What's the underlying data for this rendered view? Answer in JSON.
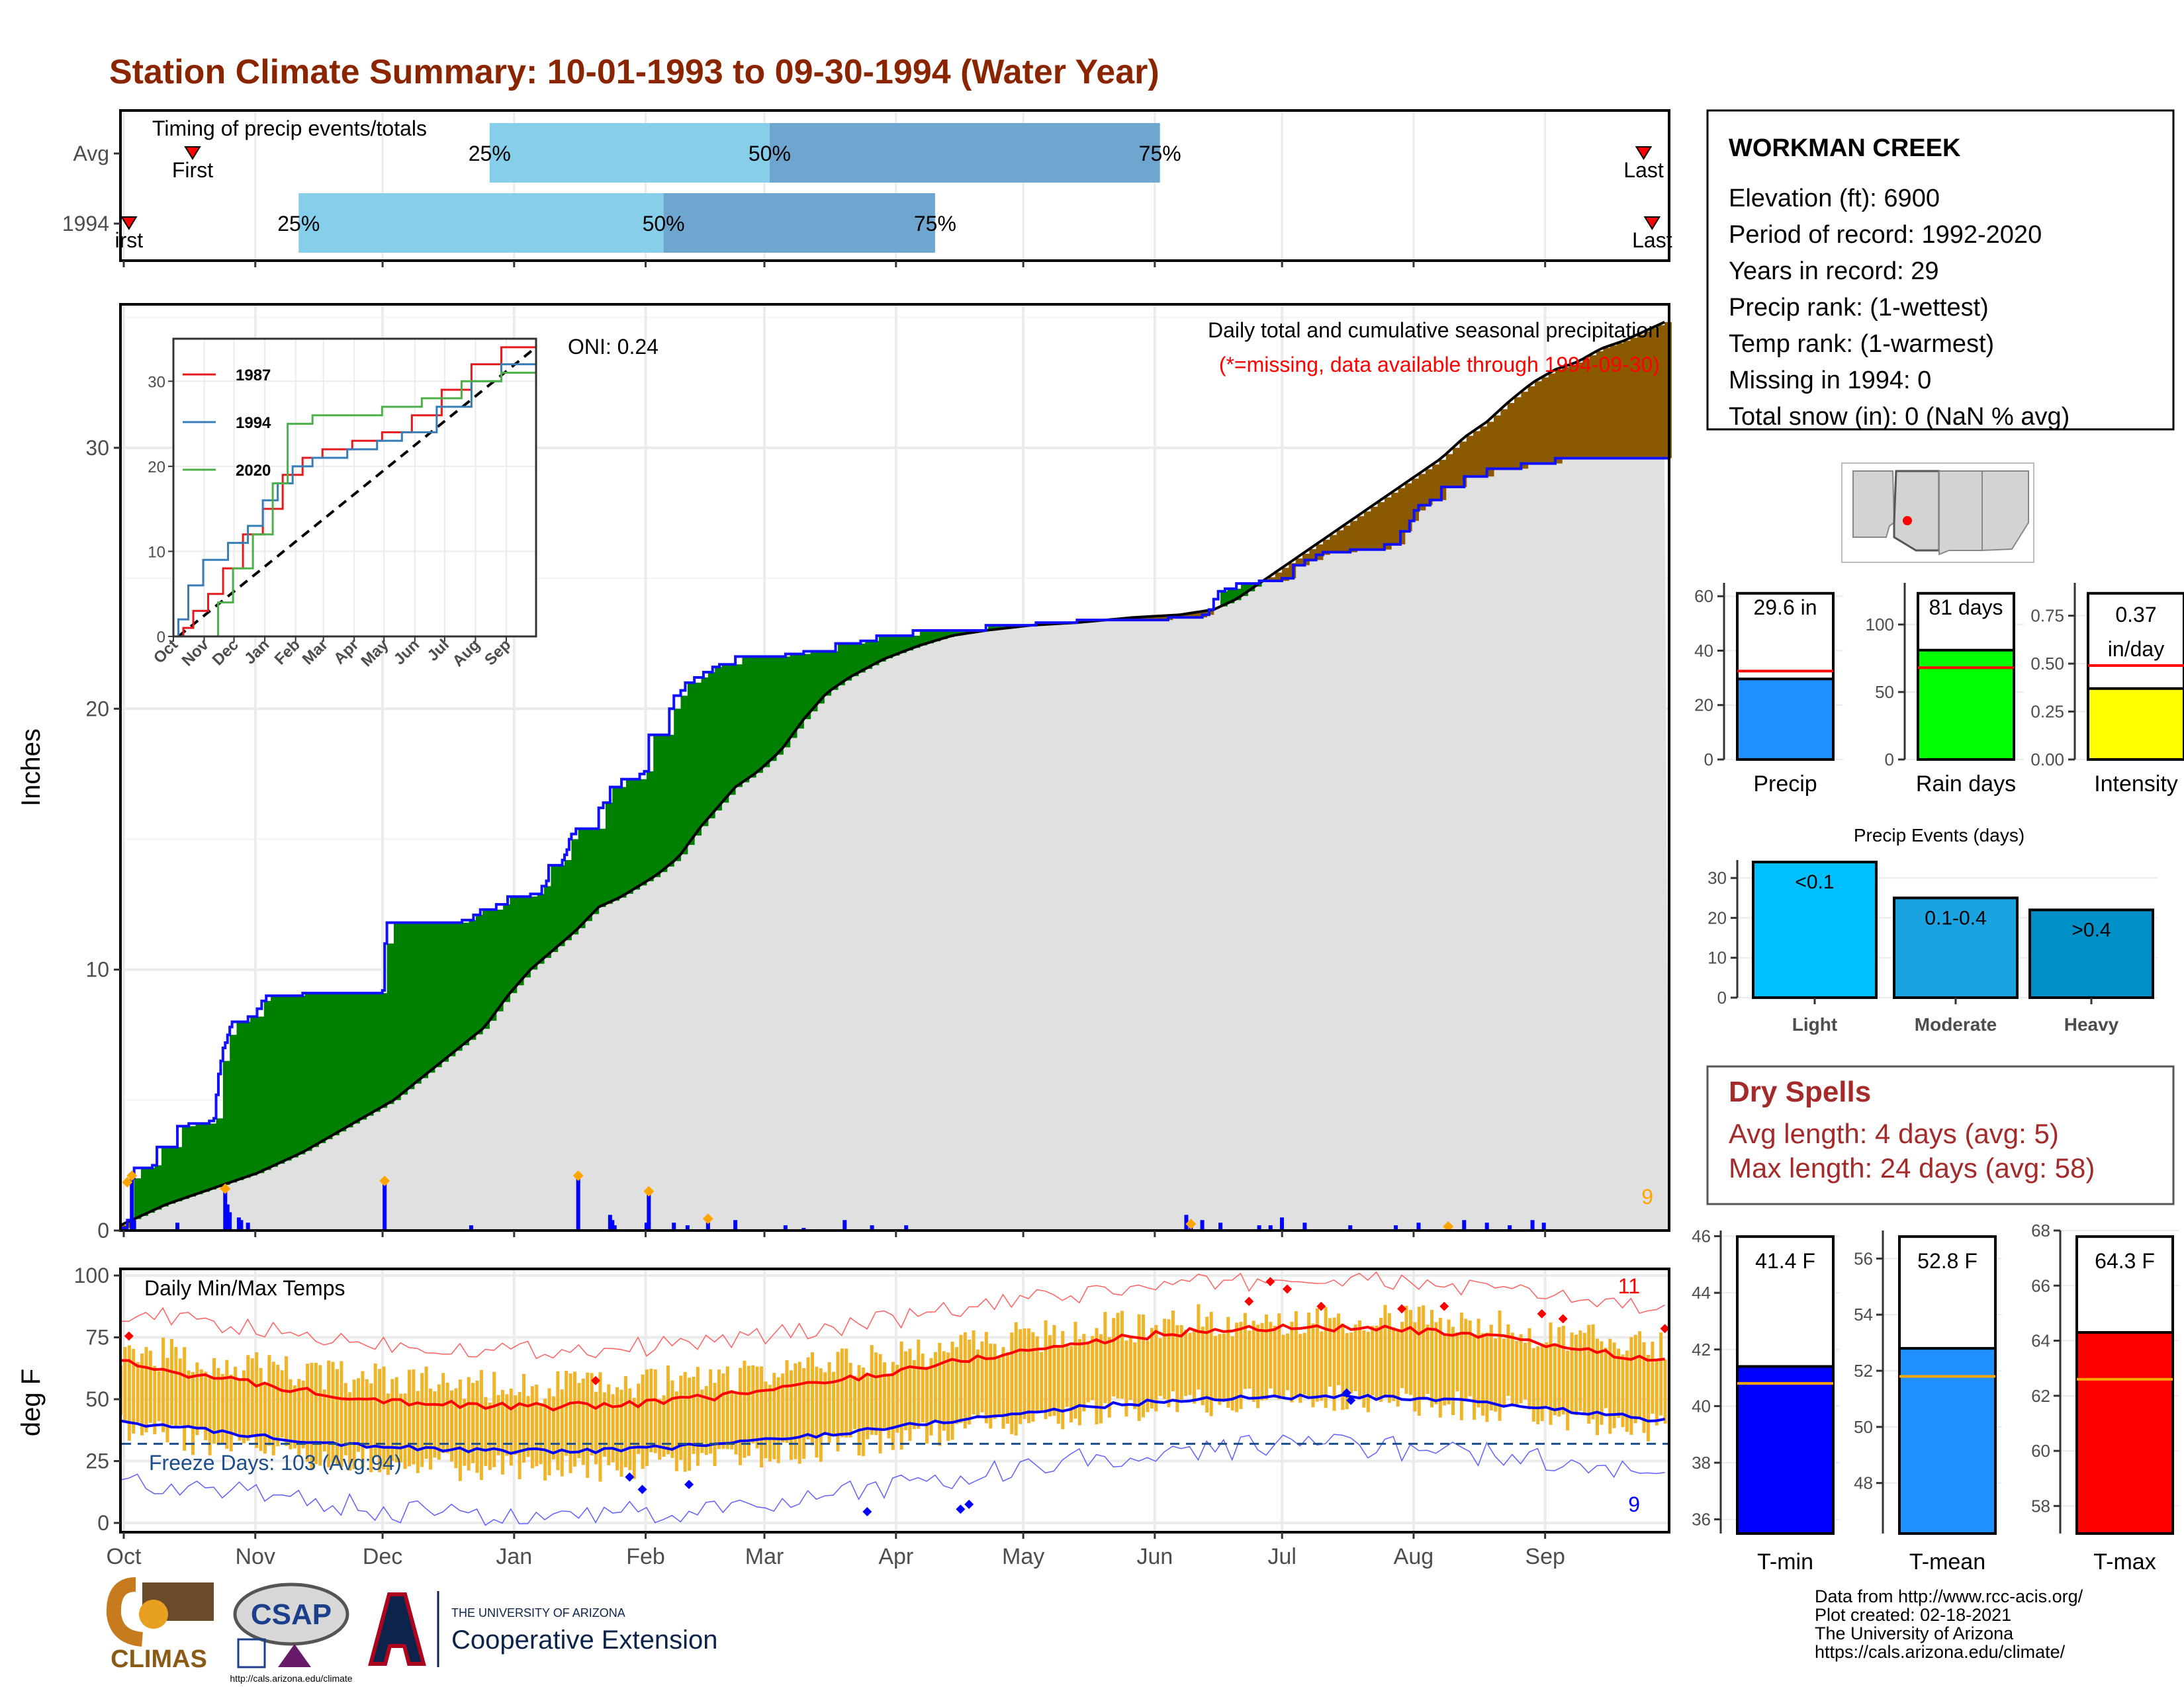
{
  "title": "Station Climate Summary: 10-01-1993 to 09-30-1994 (Water Year)",
  "colors": {
    "title": "#8b2500",
    "light_blue": "#87ceeb",
    "mid_blue": "#6ea6d0",
    "green": "#008000",
    "brown": "#8b5a00",
    "gray_fill": "#e0e0e0",
    "blue_line": "#0000ff",
    "orange": "#ffa500",
    "temp_bar": "#f0b429",
    "red": "#ff0000",
    "dry_red": "#a52a2a"
  },
  "months": [
    "Oct",
    "Nov",
    "Dec",
    "Jan",
    "Feb",
    "Mar",
    "Apr",
    "May",
    "Jun",
    "Jul",
    "Aug",
    "Sep"
  ],
  "inset_months": [
    "Oct",
    "Nov",
    "Dec",
    "Jan",
    "Feb",
    "Mar",
    "Apr",
    "May",
    "Jun",
    "Jul",
    "Aug",
    "Sep"
  ],
  "timing": {
    "title": "Timing of precip events/totals",
    "rows": [
      {
        "label": "Avg",
        "first_label": "First",
        "last_label": "Last",
        "first_day": 17,
        "p25_day": 87,
        "p50_day": 153,
        "p75_day": 245,
        "last_day": 359
      },
      {
        "label": "1994",
        "first_label": "irst",
        "last_label": "Last",
        "first_day": 2,
        "p25_day": 42,
        "p50_day": 128,
        "p75_day": 192,
        "last_day": 361
      }
    ],
    "pct_labels": [
      "25%",
      "50%",
      "75%"
    ]
  },
  "precip": {
    "ylabel": "Inches",
    "yticks": [
      0,
      10,
      20,
      30
    ],
    "ylim": [
      0,
      35.5
    ],
    "oni": "ONI: 0.24",
    "note1": "Daily total and cumulative seasonal precipitation",
    "note2": "(*=missing, data available through 1994-09-30)",
    "count": "9",
    "cum_1994": [
      [
        0,
        0.1
      ],
      [
        3,
        0.4
      ],
      [
        5,
        2.0
      ],
      [
        6,
        2.4
      ],
      [
        14,
        2.5
      ],
      [
        16,
        3.2
      ],
      [
        25,
        4.0
      ],
      [
        30,
        4.1
      ],
      [
        39,
        4.2
      ],
      [
        41,
        4.3
      ],
      [
        42,
        5.2
      ],
      [
        43,
        6.0
      ],
      [
        44,
        6.5
      ],
      [
        45,
        7.0
      ],
      [
        46,
        7.2
      ],
      [
        47,
        7.5
      ],
      [
        48,
        7.8
      ],
      [
        49,
        8.0
      ],
      [
        56,
        8.2
      ],
      [
        60,
        8.5
      ],
      [
        62,
        8.8
      ],
      [
        64,
        9.0
      ],
      [
        80,
        9.1
      ],
      [
        81,
        9.1
      ],
      [
        115,
        9.2
      ],
      [
        116,
        11.0
      ],
      [
        117,
        11.8
      ],
      [
        150,
        11.9
      ],
      [
        155,
        12.1
      ],
      [
        158,
        12.3
      ],
      [
        165,
        12.5
      ],
      [
        170,
        12.8
      ],
      [
        180,
        12.9
      ],
      [
        185,
        13.2
      ],
      [
        187,
        13.4
      ],
      [
        188,
        14.0
      ],
      [
        194,
        14.2
      ],
      [
        195,
        14.4
      ],
      [
        196,
        14.6
      ],
      [
        197,
        15.0
      ],
      [
        198,
        15.2
      ],
      [
        200,
        15.4
      ],
      [
        210,
        16.2
      ],
      [
        212,
        16.4
      ],
      [
        215,
        17.0
      ],
      [
        220,
        17.3
      ],
      [
        228,
        17.5
      ],
      [
        230,
        17.6
      ],
      [
        232,
        19.0
      ],
      [
        241,
        20.0
      ],
      [
        243,
        20.5
      ],
      [
        246,
        20.7
      ],
      [
        248,
        21.0
      ],
      [
        252,
        21.2
      ],
      [
        256,
        21.4
      ],
      [
        260,
        21.6
      ],
      [
        263,
        21.7
      ],
      [
        270,
        22.0
      ],
      [
        292,
        22.1
      ],
      [
        300,
        22.2
      ],
      [
        314,
        22.5
      ],
      [
        325,
        22.6
      ],
      [
        332,
        22.8
      ],
      [
        348,
        23.0
      ],
      [
        380,
        23.2
      ],
      [
        402,
        23.3
      ],
      [
        420,
        23.4
      ],
      [
        440,
        23.4
      ],
      [
        460,
        23.5
      ],
      [
        472,
        23.5
      ],
      [
        475,
        23.6
      ],
      [
        478,
        23.8
      ],
      [
        480,
        24.2
      ],
      [
        482,
        24.5
      ],
      [
        485,
        24.6
      ],
      [
        490,
        24.8
      ],
      [
        500,
        24.9
      ],
      [
        510,
        25.0
      ],
      [
        515,
        25.5
      ],
      [
        520,
        25.7
      ],
      [
        525,
        25.9
      ],
      [
        528,
        26.0
      ],
      [
        540,
        26.1
      ],
      [
        555,
        26.3
      ],
      [
        562,
        26.8
      ],
      [
        566,
        27.2
      ],
      [
        568,
        27.6
      ],
      [
        570,
        27.8
      ],
      [
        575,
        28.0
      ],
      [
        580,
        28.5
      ],
      [
        590,
        28.9
      ],
      [
        600,
        29.2
      ],
      [
        615,
        29.4
      ],
      [
        630,
        29.6
      ]
    ],
    "cum_avg": [
      [
        0,
        0.2
      ],
      [
        20,
        1.0
      ],
      [
        40,
        1.6
      ],
      [
        60,
        2.2
      ],
      [
        80,
        3.0
      ],
      [
        100,
        4.0
      ],
      [
        120,
        5.0
      ],
      [
        140,
        6.4
      ],
      [
        160,
        7.8
      ],
      [
        170,
        9.0
      ],
      [
        180,
        10.0
      ],
      [
        200,
        11.5
      ],
      [
        210,
        12.4
      ],
      [
        220,
        12.8
      ],
      [
        235,
        13.6
      ],
      [
        245,
        14.3
      ],
      [
        255,
        15.5
      ],
      [
        260,
        16.0
      ],
      [
        270,
        17.0
      ],
      [
        280,
        17.6
      ],
      [
        290,
        18.4
      ],
      [
        300,
        19.6
      ],
      [
        310,
        20.6
      ],
      [
        320,
        21.2
      ],
      [
        335,
        21.9
      ],
      [
        350,
        22.4
      ],
      [
        365,
        22.8
      ],
      [
        380,
        23.0
      ],
      [
        400,
        23.2
      ],
      [
        420,
        23.3
      ],
      [
        445,
        23.5
      ],
      [
        465,
        23.6
      ],
      [
        480,
        23.8
      ],
      [
        490,
        24.2
      ],
      [
        500,
        24.8
      ],
      [
        510,
        25.4
      ],
      [
        520,
        26.0
      ],
      [
        530,
        26.6
      ],
      [
        540,
        27.2
      ],
      [
        550,
        27.8
      ],
      [
        560,
        28.4
      ],
      [
        570,
        29.0
      ],
      [
        580,
        29.6
      ],
      [
        590,
        30.4
      ],
      [
        600,
        31.0
      ],
      [
        610,
        31.8
      ],
      [
        620,
        32.5
      ],
      [
        630,
        33.0
      ],
      [
        640,
        33.3
      ],
      [
        650,
        33.8
      ],
      [
        660,
        34.1
      ],
      [
        670,
        34.5
      ],
      [
        680,
        34.9
      ]
    ],
    "daily_bars": [
      [
        5,
        2.0
      ],
      [
        6,
        0.4
      ],
      [
        25,
        0.3
      ],
      [
        46,
        1.5
      ],
      [
        47,
        1.0
      ],
      [
        48,
        0.7
      ],
      [
        52,
        0.5
      ],
      [
        53,
        0.4
      ],
      [
        56,
        0.3
      ],
      [
        116,
        1.8
      ],
      [
        154,
        0.2
      ],
      [
        201,
        2.0
      ],
      [
        215,
        0.6
      ],
      [
        216,
        0.4
      ],
      [
        217,
        0.2
      ],
      [
        231,
        0.3
      ],
      [
        232,
        1.4
      ],
      [
        243,
        0.3
      ],
      [
        249,
        0.2
      ],
      [
        258,
        0.3
      ],
      [
        270,
        0.4
      ],
      [
        292,
        0.2
      ],
      [
        300,
        0.1
      ],
      [
        318,
        0.4
      ],
      [
        330,
        0.2
      ],
      [
        345,
        0.2
      ],
      [
        468,
        0.6
      ],
      [
        470,
        0.3
      ],
      [
        475,
        0.4
      ],
      [
        483,
        0.3
      ],
      [
        500,
        0.2
      ],
      [
        505,
        0.2
      ],
      [
        510,
        0.5
      ],
      [
        520,
        0.3
      ],
      [
        540,
        0.2
      ],
      [
        560,
        0.2
      ],
      [
        570,
        0.3
      ],
      [
        590,
        0.4
      ],
      [
        600,
        0.3
      ],
      [
        610,
        0.2
      ],
      [
        620,
        0.4
      ],
      [
        625,
        0.3
      ]
    ]
  },
  "inset": {
    "legend": [
      "1987",
      "1994",
      "2020"
    ],
    "yticks": [
      0,
      10,
      20,
      30
    ],
    "colors": [
      "#e41a1c",
      "#377eb8",
      "#4daf4a"
    ]
  },
  "temps": {
    "title": "Daily Min/Max Temps",
    "ylabel": "deg F",
    "yticks": [
      0,
      25,
      50,
      75,
      100
    ],
    "freeze_label": "Freeze Days: 103 (Avg:94)",
    "count_high": "11",
    "count_low": "9",
    "freeze_line": 32
  },
  "station": {
    "name": "WORKMAN CREEK",
    "lines": [
      "Elevation (ft): 6900",
      "Period of record: 1992-2020",
      "Years in record: 29",
      "Precip rank:  (1-wettest)",
      "Temp rank:  (1-warmest)",
      "Missing in 1994: 0",
      "Total snow (in): 0 (NaN % avg)"
    ]
  },
  "summary_bars": [
    {
      "label": "Precip",
      "value_label": "29.6 in",
      "value": 29.6,
      "avg": 32.5,
      "ymax": 62,
      "yticks": [
        0,
        20,
        40,
        60
      ],
      "color": "#1e90ff"
    },
    {
      "label": "Rain days",
      "value_label": "81 days",
      "value": 81,
      "avg": 68,
      "ymax": 125,
      "yticks": [
        0,
        50,
        100
      ],
      "color": "#00ff00"
    },
    {
      "label": "Intensity",
      "value_label_1": "0.37",
      "value_label_2": "in/day",
      "value": 0.37,
      "avg": 0.49,
      "ymax": 0.88,
      "yticks": [
        "0.00",
        "0.25",
        "0.50",
        "0.75"
      ],
      "color": "#ffff00"
    }
  ],
  "events": {
    "title": "Precip Events (days)",
    "categories": [
      "Light",
      "Moderate",
      "Heavy"
    ],
    "labels": [
      "<0.1",
      "0.1-0.4",
      ">0.4"
    ],
    "values": [
      34,
      25,
      22
    ],
    "ymax": 34.5,
    "yticks": [
      0,
      10,
      20,
      30
    ],
    "colors": [
      "#00bfff",
      "#1aa3e0",
      "#0090c8"
    ]
  },
  "dry": {
    "title": "Dry Spells",
    "avg_line": "Avg length: 4 days (avg: 5)",
    "max_line": "Max length: 24 days (avg: 58)"
  },
  "temp_bars": [
    {
      "label": "T-min",
      "value_label": "41.4 F",
      "value": 41.4,
      "avg": 40.8,
      "ymin": 35.5,
      "ymax": 46.2,
      "yticks": [
        36,
        38,
        40,
        42,
        44,
        46
      ],
      "color": "#0000ff"
    },
    {
      "label": "T-mean",
      "value_label": "52.8 F",
      "value": 52.8,
      "avg": 51.8,
      "ymin": 46.2,
      "ymax": 57,
      "yticks": [
        48,
        50,
        52,
        54,
        56
      ],
      "color": "#1e90ff"
    },
    {
      "label": "T-max",
      "value_label": "64.3 F",
      "value": 64.3,
      "avg": 62.6,
      "ymin": 57,
      "ymax": 68,
      "yticks": [
        58,
        60,
        62,
        64,
        66,
        68
      ],
      "color": "#ff0000"
    }
  ],
  "footer": {
    "lines": [
      "Data from http://www.rcc-acis.org/",
      "Plot created: 02-18-2021",
      "The University of Arizona",
      "https://cals.arizona.edu/climate/"
    ],
    "logo_climas": "CLIMAS",
    "logo_csap": "CSAP",
    "csap_url": "http://cals.arizona.edu/climate",
    "ua_small": "THE UNIVERSITY OF ARIZONA",
    "ua_big": "Cooperative Extension"
  }
}
